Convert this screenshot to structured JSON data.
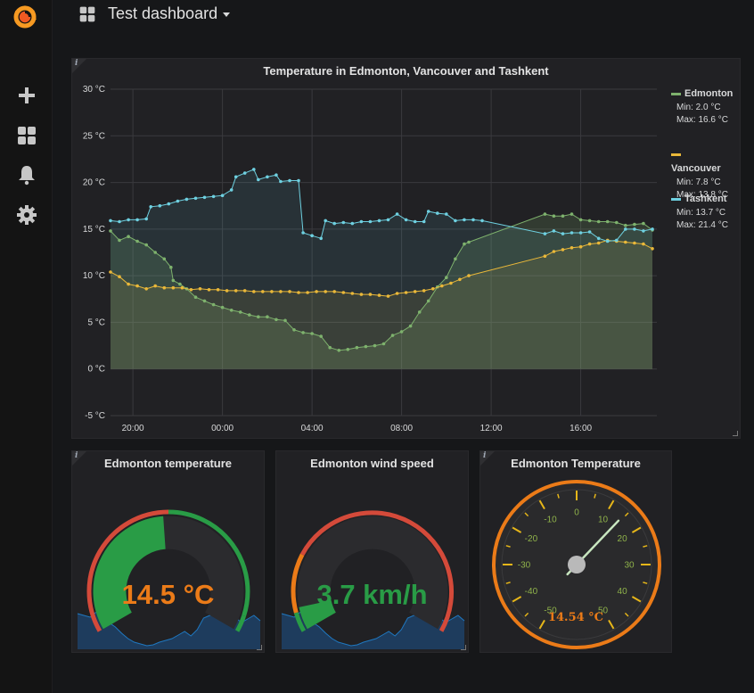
{
  "sidebar": {
    "logo_icon": "grafana-logo-icon",
    "items": [
      {
        "icon": "plus-icon",
        "label": "Create"
      },
      {
        "icon": "dashboards-icon",
        "label": "Dashboards"
      },
      {
        "icon": "bell-icon",
        "label": "Alerting"
      },
      {
        "icon": "gear-icon",
        "label": "Configuration"
      }
    ]
  },
  "header": {
    "title": "Test dashboard",
    "icon": "dashboards-icon"
  },
  "colors": {
    "edmonton": "#7eb26d",
    "vancouver": "#eab839",
    "tashkent": "#6ed0e0",
    "green": "#299c46",
    "orange": "#eb7b18",
    "red": "#d44a3a"
  },
  "graph_panel": {
    "title": "Temperature in Edmonton, Vancouver and Tashkent",
    "legend": [
      {
        "name": "Edmonton",
        "min": "Min: 2.0 °C",
        "max": "Max: 16.6 °C",
        "color": "#7eb26d"
      },
      {
        "name": "Vancouver",
        "min": "Min: 7.8 °C",
        "max": "Max: 13.8 °C",
        "color": "#eab839"
      },
      {
        "name": "Tashkent",
        "min": "Min: 13.7 °C",
        "max": "Max: 21.4 °C",
        "color": "#6ed0e0"
      }
    ]
  },
  "chart_data": {
    "type": "line",
    "title": "Temperature in Edmonton, Vancouver and Tashkent",
    "x_tick_labels": [
      "20:00",
      "00:00",
      "04:00",
      "08:00",
      "12:00",
      "16:00"
    ],
    "x_tick_hours": [
      20,
      24,
      28,
      32,
      36,
      40
    ],
    "xlim_hours": [
      19,
      43.4
    ],
    "y_tick_labels": [
      "30 °C",
      "25 °C",
      "20 °C",
      "15 °C",
      "10 °C",
      "5 °C",
      "0 °C",
      "-5 °C"
    ],
    "y_tick_values": [
      30,
      25,
      20,
      15,
      10,
      5,
      0,
      -5
    ],
    "ylim": [
      -5,
      30
    ],
    "grid": true,
    "legend_position": "right",
    "series": [
      {
        "name": "Edmonton",
        "color": "#7eb26d",
        "points": [
          [
            19.0,
            14.8
          ],
          [
            19.4,
            13.8
          ],
          [
            19.8,
            14.2
          ],
          [
            20.2,
            13.7
          ],
          [
            20.6,
            13.3
          ],
          [
            21.0,
            12.5
          ],
          [
            21.4,
            11.8
          ],
          [
            21.7,
            10.9
          ],
          [
            21.8,
            9.5
          ],
          [
            22.1,
            9.1
          ],
          [
            22.4,
            8.6
          ],
          [
            22.8,
            7.7
          ],
          [
            23.2,
            7.3
          ],
          [
            23.6,
            6.9
          ],
          [
            24.0,
            6.6
          ],
          [
            24.4,
            6.3
          ],
          [
            24.8,
            6.1
          ],
          [
            25.2,
            5.8
          ],
          [
            25.6,
            5.6
          ],
          [
            26.0,
            5.6
          ],
          [
            26.4,
            5.3
          ],
          [
            26.8,
            5.2
          ],
          [
            27.2,
            4.2
          ],
          [
            27.6,
            3.9
          ],
          [
            28.0,
            3.8
          ],
          [
            28.4,
            3.5
          ],
          [
            28.8,
            2.3
          ],
          [
            29.2,
            2.0
          ],
          [
            29.6,
            2.1
          ],
          [
            30.0,
            2.3
          ],
          [
            30.4,
            2.4
          ],
          [
            30.8,
            2.5
          ],
          [
            31.2,
            2.7
          ],
          [
            31.6,
            3.6
          ],
          [
            32.0,
            4.0
          ],
          [
            32.4,
            4.6
          ],
          [
            32.8,
            6.1
          ],
          [
            33.2,
            7.3
          ],
          [
            33.6,
            8.8
          ],
          [
            34.0,
            9.8
          ],
          [
            34.4,
            11.8
          ],
          [
            34.8,
            13.4
          ],
          [
            35.0,
            13.6
          ],
          [
            38.4,
            16.6
          ],
          [
            38.8,
            16.4
          ],
          [
            39.2,
            16.4
          ],
          [
            39.6,
            16.6
          ],
          [
            40.0,
            16.0
          ],
          [
            40.4,
            15.9
          ],
          [
            40.8,
            15.8
          ],
          [
            41.2,
            15.8
          ],
          [
            41.6,
            15.7
          ],
          [
            42.0,
            15.4
          ],
          [
            42.4,
            15.5
          ],
          [
            42.8,
            15.6
          ],
          [
            43.2,
            14.9
          ]
        ]
      },
      {
        "name": "Vancouver",
        "color": "#eab839",
        "points": [
          [
            19.0,
            10.4
          ],
          [
            19.4,
            9.9
          ],
          [
            19.8,
            9.1
          ],
          [
            20.2,
            8.9
          ],
          [
            20.6,
            8.6
          ],
          [
            21.0,
            8.9
          ],
          [
            21.4,
            8.7
          ],
          [
            21.8,
            8.7
          ],
          [
            22.2,
            8.7
          ],
          [
            22.6,
            8.5
          ],
          [
            23.0,
            8.6
          ],
          [
            23.4,
            8.5
          ],
          [
            23.8,
            8.5
          ],
          [
            24.2,
            8.4
          ],
          [
            24.6,
            8.4
          ],
          [
            25.0,
            8.4
          ],
          [
            25.4,
            8.3
          ],
          [
            25.8,
            8.3
          ],
          [
            26.2,
            8.3
          ],
          [
            26.6,
            8.3
          ],
          [
            27.0,
            8.3
          ],
          [
            27.4,
            8.2
          ],
          [
            27.8,
            8.2
          ],
          [
            28.2,
            8.3
          ],
          [
            28.6,
            8.3
          ],
          [
            29.0,
            8.3
          ],
          [
            29.4,
            8.2
          ],
          [
            29.8,
            8.1
          ],
          [
            30.2,
            8.0
          ],
          [
            30.6,
            8.0
          ],
          [
            31.0,
            7.9
          ],
          [
            31.4,
            7.8
          ],
          [
            31.8,
            8.1
          ],
          [
            32.2,
            8.2
          ],
          [
            32.6,
            8.3
          ],
          [
            33.0,
            8.4
          ],
          [
            33.4,
            8.6
          ],
          [
            33.8,
            8.9
          ],
          [
            34.2,
            9.2
          ],
          [
            34.6,
            9.6
          ],
          [
            35.0,
            10.0
          ],
          [
            38.4,
            12.1
          ],
          [
            38.8,
            12.6
          ],
          [
            39.2,
            12.8
          ],
          [
            39.6,
            13.0
          ],
          [
            40.0,
            13.1
          ],
          [
            40.4,
            13.4
          ],
          [
            40.8,
            13.5
          ],
          [
            41.2,
            13.8
          ],
          [
            41.6,
            13.7
          ],
          [
            42.0,
            13.6
          ],
          [
            42.4,
            13.5
          ],
          [
            42.8,
            13.4
          ],
          [
            43.2,
            12.9
          ]
        ]
      },
      {
        "name": "Tashkent",
        "color": "#6ed0e0",
        "points": [
          [
            19.0,
            15.9
          ],
          [
            19.4,
            15.8
          ],
          [
            19.8,
            16.0
          ],
          [
            20.2,
            16.0
          ],
          [
            20.6,
            16.1
          ],
          [
            20.8,
            17.4
          ],
          [
            21.2,
            17.5
          ],
          [
            21.6,
            17.7
          ],
          [
            22.0,
            18.0
          ],
          [
            22.4,
            18.2
          ],
          [
            22.8,
            18.3
          ],
          [
            23.2,
            18.4
          ],
          [
            23.6,
            18.5
          ],
          [
            24.0,
            18.6
          ],
          [
            24.4,
            19.2
          ],
          [
            24.6,
            20.6
          ],
          [
            25.0,
            21.0
          ],
          [
            25.4,
            21.4
          ],
          [
            25.6,
            20.3
          ],
          [
            26.0,
            20.6
          ],
          [
            26.4,
            20.8
          ],
          [
            26.6,
            20.1
          ],
          [
            27.0,
            20.2
          ],
          [
            27.4,
            20.2
          ],
          [
            27.6,
            14.6
          ],
          [
            28.0,
            14.3
          ],
          [
            28.4,
            14.0
          ],
          [
            28.6,
            15.9
          ],
          [
            29.0,
            15.6
          ],
          [
            29.4,
            15.7
          ],
          [
            29.8,
            15.6
          ],
          [
            30.2,
            15.8
          ],
          [
            30.6,
            15.8
          ],
          [
            31.0,
            15.9
          ],
          [
            31.4,
            16.0
          ],
          [
            31.8,
            16.6
          ],
          [
            32.2,
            16.0
          ],
          [
            32.6,
            15.8
          ],
          [
            33.0,
            15.8
          ],
          [
            33.2,
            16.9
          ],
          [
            33.6,
            16.7
          ],
          [
            34.0,
            16.6
          ],
          [
            34.4,
            15.9
          ],
          [
            34.8,
            16.0
          ],
          [
            35.2,
            16.0
          ],
          [
            35.6,
            15.9
          ],
          [
            38.4,
            14.5
          ],
          [
            38.8,
            14.8
          ],
          [
            39.2,
            14.5
          ],
          [
            39.6,
            14.6
          ],
          [
            40.0,
            14.6
          ],
          [
            40.4,
            14.7
          ],
          [
            40.8,
            14.0
          ],
          [
            41.2,
            13.7
          ],
          [
            41.6,
            13.8
          ],
          [
            42.0,
            15.0
          ],
          [
            42.4,
            15.0
          ],
          [
            42.8,
            14.8
          ],
          [
            43.2,
            15.0
          ]
        ]
      }
    ]
  },
  "gauge1": {
    "title": "Edmonton temperature",
    "value_text": "14.5 °C",
    "value": 14.5,
    "min": 0,
    "max": 30,
    "thresholds_note": "red below 2, green 2–28, red above 28",
    "value_color": "#eb7b18"
  },
  "gauge2": {
    "title": "Edmonton wind speed",
    "value_text": "3.7 km/h",
    "value": 3.7,
    "min": 0,
    "max": 50,
    "value_color": "#299c46"
  },
  "gauge3": {
    "title": "Edmonton Temperature",
    "value_text": "14.54 °C",
    "value": 14.54,
    "min": -50,
    "max": 50,
    "scale_labels": [
      "-50",
      "-40",
      "-30",
      "-20",
      "-10",
      "0",
      "10",
      "20",
      "30",
      "40",
      "50"
    ],
    "scale_values": [
      -50,
      -40,
      -30,
      -20,
      -10,
      0,
      10,
      20,
      30,
      40,
      50
    ]
  }
}
